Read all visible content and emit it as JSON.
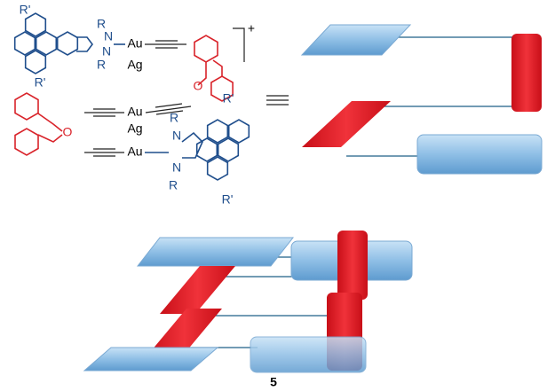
{
  "charge": "+",
  "compound_number": "5",
  "labels": [
    "R'",
    "R",
    "N",
    "N",
    "R",
    "Au",
    "Ag",
    "R'",
    "O",
    "R'",
    "Au",
    "Ag",
    "O",
    "Au",
    "R",
    "N",
    "N",
    "R",
    "R'"
  ]
}
